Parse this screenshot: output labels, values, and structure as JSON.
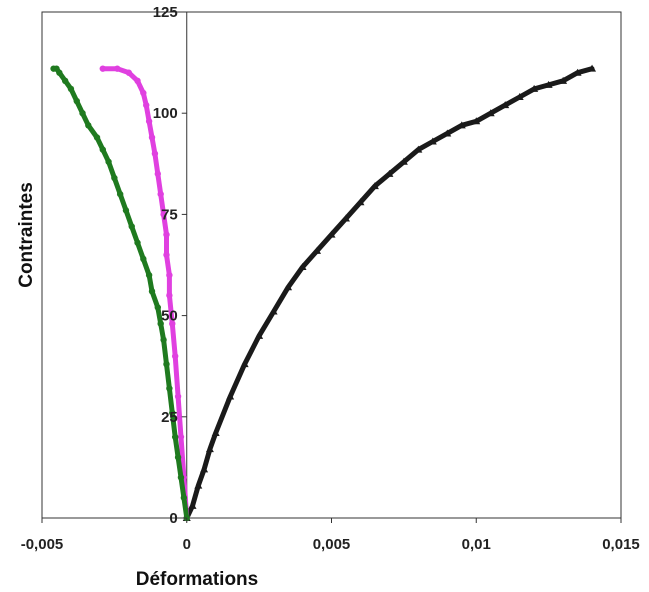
{
  "chart_data": {
    "type": "scatter",
    "title": "",
    "xlabel": "Déformations",
    "ylabel": "Contraintes",
    "xlim": [
      -0.005,
      0.015
    ],
    "ylim": [
      0,
      125
    ],
    "x_ticks": [
      -0.005,
      0,
      0.005,
      0.01,
      0.015
    ],
    "x_tick_labels": [
      "-0,005",
      "0",
      "0,005",
      "0,01",
      "0,015"
    ],
    "y_ticks": [
      0,
      25,
      50,
      75,
      100,
      125
    ],
    "y_tick_labels": [
      "0",
      "25",
      "50",
      "75",
      "100",
      "125"
    ],
    "grid": false,
    "series": [
      {
        "color": "#1a1a1a",
        "marker": "triangle",
        "points": [
          [
            0,
            0
          ],
          [
            0.0002,
            3
          ],
          [
            0.0004,
            8
          ],
          [
            0.0006,
            12
          ],
          [
            0.0008,
            17
          ],
          [
            0.001,
            21
          ],
          [
            0.0015,
            30
          ],
          [
            0.002,
            38
          ],
          [
            0.0025,
            45
          ],
          [
            0.003,
            51
          ],
          [
            0.0035,
            57
          ],
          [
            0.004,
            62
          ],
          [
            0.0045,
            66
          ],
          [
            0.005,
            70
          ],
          [
            0.0055,
            74
          ],
          [
            0.006,
            78
          ],
          [
            0.0065,
            82
          ],
          [
            0.007,
            85
          ],
          [
            0.0075,
            88
          ],
          [
            0.008,
            91
          ],
          [
            0.0085,
            93
          ],
          [
            0.009,
            95
          ],
          [
            0.0095,
            97
          ],
          [
            0.01,
            98
          ],
          [
            0.0105,
            100
          ],
          [
            0.011,
            102
          ],
          [
            0.0115,
            104
          ],
          [
            0.012,
            106
          ],
          [
            0.0125,
            107
          ],
          [
            0.013,
            108
          ],
          [
            0.0135,
            110
          ],
          [
            0.014,
            111
          ]
        ]
      },
      {
        "color": "#e040e0",
        "marker": "circle",
        "points": [
          [
            0,
            0
          ],
          [
            -0.0001,
            10
          ],
          [
            -0.0002,
            20
          ],
          [
            -0.0003,
            30
          ],
          [
            -0.0004,
            40
          ],
          [
            -0.0005,
            48
          ],
          [
            -0.0006,
            55
          ],
          [
            -0.0006,
            60
          ],
          [
            -0.0007,
            65
          ],
          [
            -0.0007,
            70
          ],
          [
            -0.0008,
            75
          ],
          [
            -0.0009,
            80
          ],
          [
            -0.001,
            85
          ],
          [
            -0.0011,
            90
          ],
          [
            -0.0012,
            94
          ],
          [
            -0.0013,
            98
          ],
          [
            -0.0014,
            102
          ],
          [
            -0.0015,
            105
          ],
          [
            -0.0017,
            108
          ],
          [
            -0.002,
            110
          ],
          [
            -0.0024,
            111
          ],
          [
            -0.0029,
            111
          ]
        ]
      },
      {
        "color": "#1f7a1f",
        "marker": "circle",
        "points": [
          [
            0,
            0
          ],
          [
            -0.0001,
            5
          ],
          [
            -0.0002,
            10
          ],
          [
            -0.0003,
            15
          ],
          [
            -0.0004,
            20
          ],
          [
            -0.0005,
            26
          ],
          [
            -0.0006,
            32
          ],
          [
            -0.0007,
            38
          ],
          [
            -0.0008,
            44
          ],
          [
            -0.0009,
            48
          ],
          [
            -0.001,
            52
          ],
          [
            -0.0012,
            56
          ],
          [
            -0.0013,
            60
          ],
          [
            -0.0015,
            64
          ],
          [
            -0.0017,
            68
          ],
          [
            -0.0019,
            72
          ],
          [
            -0.0021,
            76
          ],
          [
            -0.0023,
            80
          ],
          [
            -0.0025,
            84
          ],
          [
            -0.0027,
            88
          ],
          [
            -0.0029,
            91
          ],
          [
            -0.0031,
            94
          ],
          [
            -0.0034,
            97
          ],
          [
            -0.0036,
            100
          ],
          [
            -0.0038,
            103
          ],
          [
            -0.004,
            106
          ],
          [
            -0.0042,
            108
          ],
          [
            -0.0044,
            110
          ],
          [
            -0.0045,
            111
          ],
          [
            -0.0046,
            111
          ]
        ]
      }
    ]
  }
}
